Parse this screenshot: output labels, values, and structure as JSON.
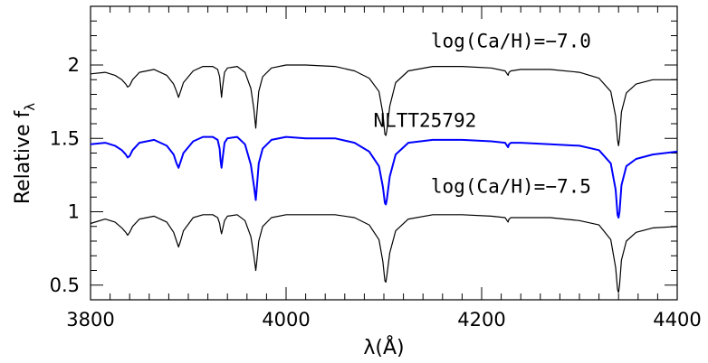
{
  "chart_data": {
    "type": "line",
    "xlabel": "λ(Å)",
    "ylabel_main": "Relative f",
    "ylabel_sub": "λ",
    "xlim": [
      3800,
      4400
    ],
    "ylim": [
      0.4,
      2.4
    ],
    "x_ticks": [
      3800,
      4000,
      4200,
      4400
    ],
    "x_tick_labels": [
      "3800",
      "4000",
      "4200",
      "4400"
    ],
    "y_ticks": [
      0.5,
      1,
      1.5,
      2
    ],
    "y_tick_labels": [
      "0.5",
      "1",
      "1.5",
      "2"
    ],
    "grid": false,
    "annotations": [
      {
        "text": "log(Ca/H)=−7.0",
        "x": 4230,
        "y": 2.12
      },
      {
        "text": "NLTT25792",
        "x": 4142,
        "y": 1.58
      },
      {
        "text": "log(Ca/H)=−7.5",
        "x": 4230,
        "y": 1.13
      }
    ],
    "series": [
      {
        "color": "#000000",
        "x": [
          3800,
          3815,
          3825,
          3832,
          3836,
          3838,
          3840,
          3843,
          3850,
          3865,
          3878,
          3885,
          3888,
          3890,
          3892,
          3895,
          3905,
          3915,
          3925,
          3930,
          3932,
          3933,
          3934,
          3935,
          3937,
          3940,
          3950,
          3958,
          3964,
          3967,
          3969,
          3970,
          3972,
          3976,
          3985,
          4000,
          4020,
          4050,
          4070,
          4085,
          4095,
          4099,
          4101,
          4102,
          4103,
          4106,
          4112,
          4125,
          4150,
          4180,
          4210,
          4224,
          4226,
          4227,
          4228,
          4230,
          4240,
          4270,
          4300,
          4320,
          4332,
          4337,
          4339,
          4340,
          4341,
          4343,
          4348,
          4358,
          4375,
          4400
        ],
        "values": [
          1.94,
          1.95,
          1.93,
          1.9,
          1.87,
          1.85,
          1.86,
          1.9,
          1.95,
          1.97,
          1.93,
          1.87,
          1.82,
          1.78,
          1.82,
          1.88,
          1.96,
          1.99,
          1.99,
          1.97,
          1.92,
          1.85,
          1.78,
          1.85,
          1.95,
          1.98,
          1.99,
          1.95,
          1.84,
          1.7,
          1.57,
          1.66,
          1.82,
          1.92,
          1.98,
          2.0,
          2.0,
          1.99,
          1.96,
          1.91,
          1.82,
          1.67,
          1.53,
          1.52,
          1.55,
          1.72,
          1.88,
          1.96,
          1.99,
          1.99,
          1.98,
          1.96,
          1.94,
          1.93,
          1.95,
          1.96,
          1.97,
          1.97,
          1.95,
          1.91,
          1.82,
          1.65,
          1.49,
          1.45,
          1.5,
          1.68,
          1.81,
          1.87,
          1.9,
          1.9
        ]
      },
      {
        "color": "#0000ff",
        "x": [
          3800,
          3815,
          3825,
          3832,
          3836,
          3838,
          3840,
          3843,
          3850,
          3865,
          3878,
          3885,
          3888,
          3890,
          3892,
          3895,
          3905,
          3915,
          3925,
          3930,
          3932,
          3933,
          3934,
          3935,
          3937,
          3940,
          3950,
          3958,
          3964,
          3967,
          3969,
          3970,
          3972,
          3976,
          3985,
          4000,
          4020,
          4050,
          4070,
          4085,
          4095,
          4099,
          4101,
          4102,
          4103,
          4106,
          4112,
          4125,
          4150,
          4180,
          4210,
          4224,
          4226,
          4227,
          4228,
          4230,
          4240,
          4270,
          4300,
          4320,
          4332,
          4337,
          4339,
          4340,
          4341,
          4343,
          4348,
          4358,
          4375,
          4400
        ],
        "values": [
          1.46,
          1.47,
          1.45,
          1.42,
          1.39,
          1.37,
          1.38,
          1.42,
          1.47,
          1.49,
          1.45,
          1.39,
          1.33,
          1.3,
          1.34,
          1.4,
          1.48,
          1.51,
          1.51,
          1.49,
          1.43,
          1.35,
          1.3,
          1.36,
          1.47,
          1.5,
          1.51,
          1.46,
          1.32,
          1.18,
          1.08,
          1.16,
          1.33,
          1.43,
          1.49,
          1.51,
          1.5,
          1.5,
          1.47,
          1.41,
          1.31,
          1.17,
          1.06,
          1.05,
          1.08,
          1.24,
          1.39,
          1.47,
          1.49,
          1.49,
          1.48,
          1.47,
          1.45,
          1.44,
          1.46,
          1.47,
          1.47,
          1.46,
          1.45,
          1.42,
          1.33,
          1.15,
          0.98,
          0.96,
          1.0,
          1.18,
          1.31,
          1.36,
          1.39,
          1.41
        ]
      },
      {
        "color": "#000000",
        "x": [
          3800,
          3815,
          3825,
          3832,
          3836,
          3838,
          3840,
          3843,
          3850,
          3865,
          3878,
          3885,
          3888,
          3890,
          3892,
          3895,
          3905,
          3915,
          3925,
          3930,
          3932,
          3933,
          3934,
          3935,
          3937,
          3940,
          3950,
          3958,
          3964,
          3967,
          3969,
          3970,
          3972,
          3976,
          3985,
          4000,
          4020,
          4050,
          4070,
          4085,
          4095,
          4099,
          4101,
          4102,
          4103,
          4106,
          4112,
          4125,
          4150,
          4180,
          4210,
          4224,
          4226,
          4227,
          4228,
          4230,
          4240,
          4270,
          4300,
          4320,
          4332,
          4337,
          4339,
          4340,
          4341,
          4343,
          4348,
          4358,
          4375,
          4400
        ],
        "values": [
          0.92,
          0.95,
          0.93,
          0.89,
          0.86,
          0.84,
          0.86,
          0.9,
          0.95,
          0.97,
          0.93,
          0.86,
          0.8,
          0.76,
          0.8,
          0.87,
          0.96,
          0.98,
          0.98,
          0.96,
          0.92,
          0.88,
          0.85,
          0.88,
          0.94,
          0.97,
          0.98,
          0.94,
          0.83,
          0.7,
          0.6,
          0.66,
          0.8,
          0.9,
          0.96,
          0.98,
          0.98,
          0.98,
          0.96,
          0.91,
          0.81,
          0.66,
          0.53,
          0.52,
          0.56,
          0.72,
          0.87,
          0.95,
          0.98,
          0.98,
          0.97,
          0.96,
          0.94,
          0.93,
          0.95,
          0.96,
          0.96,
          0.96,
          0.94,
          0.91,
          0.81,
          0.62,
          0.47,
          0.45,
          0.5,
          0.67,
          0.8,
          0.86,
          0.89,
          0.9
        ]
      }
    ]
  }
}
